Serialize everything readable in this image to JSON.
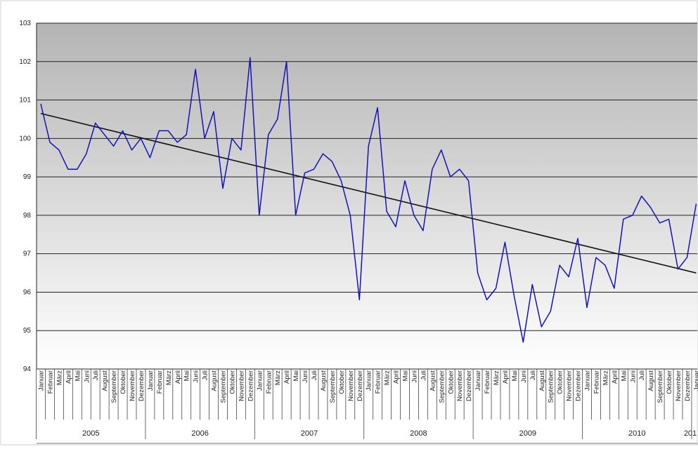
{
  "chart_data": {
    "type": "line",
    "title": "",
    "xlabel": "",
    "ylabel": "",
    "ylim": [
      94,
      103
    ],
    "yticks": [
      "94",
      "95",
      "96",
      "97",
      "98",
      "99",
      "100",
      "101",
      "102",
      "103"
    ],
    "grid": true,
    "legend": "none",
    "background_gradient": [
      "#b4b4b4",
      "#ffffff"
    ],
    "months": [
      "Januar",
      "Februar",
      "März",
      "April",
      "Mai",
      "Juni",
      "Juli",
      "August",
      "September",
      "Oktober",
      "November",
      "Dezember"
    ],
    "years": [
      "2005",
      "2006",
      "2007",
      "2008",
      "2009",
      "2010",
      "201"
    ],
    "series": [
      {
        "color": "#1414b4",
        "x_start": "Januar 2005",
        "values": [
          100.9,
          99.9,
          99.7,
          99.2,
          99.2,
          99.6,
          100.4,
          100.1,
          99.8,
          100.2,
          99.7,
          100.0,
          99.5,
          100.2,
          100.2,
          99.9,
          100.1,
          101.8,
          100.0,
          100.7,
          98.7,
          100.0,
          99.7,
          102.1,
          98.0,
          100.1,
          100.5,
          102.0,
          98.0,
          99.1,
          99.2,
          99.6,
          99.4,
          98.9,
          98.0,
          95.8,
          99.8,
          100.8,
          98.1,
          97.7,
          98.9,
          98.0,
          97.6,
          99.2,
          99.7,
          99.0,
          99.2,
          98.9,
          96.5,
          95.8,
          96.1,
          97.3,
          95.9,
          94.7,
          96.2,
          95.1,
          95.5,
          96.7,
          96.4,
          97.4,
          95.6,
          96.9,
          96.7,
          96.1,
          97.9,
          98.0,
          98.5,
          98.2,
          97.8,
          97.9,
          96.6,
          96.9,
          98.3
        ]
      },
      {
        "type": "trendline",
        "color": "#111111",
        "x_start": "Januar 2005",
        "x_end": "Januar 2011",
        "values": [
          100.65,
          96.5
        ]
      }
    ]
  }
}
